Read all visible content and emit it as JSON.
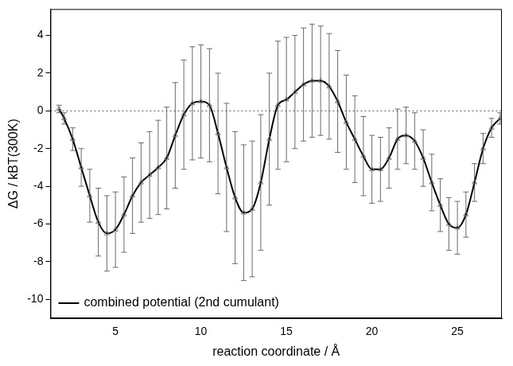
{
  "chart_data": {
    "type": "line",
    "x_label": "reaction coordinate / Å",
    "y_label": "ΔG / kBT(300K)",
    "x": [
      1.7,
      2.0,
      2.5,
      3.0,
      3.5,
      4.0,
      4.5,
      5.0,
      5.5,
      6.0,
      6.5,
      7.0,
      7.5,
      8.0,
      8.5,
      9.0,
      9.5,
      10.0,
      10.5,
      11.0,
      11.5,
      12.0,
      12.5,
      13.0,
      13.5,
      14.0,
      14.5,
      15.0,
      15.5,
      16.0,
      16.5,
      17.0,
      17.5,
      18.0,
      18.5,
      19.0,
      19.5,
      20.0,
      20.5,
      21.0,
      21.5,
      22.0,
      22.5,
      23.0,
      23.5,
      24.0,
      24.5,
      25.0,
      25.5,
      26.0,
      26.5,
      27.0,
      27.5
    ],
    "series": [
      {
        "name": "combined potential (2nd cumulant)",
        "color": "#000000",
        "marker": "triangle",
        "values": [
          0.1,
          -0.4,
          -1.5,
          -3.0,
          -4.5,
          -5.9,
          -6.5,
          -6.3,
          -5.5,
          -4.5,
          -3.8,
          -3.4,
          -3.0,
          -2.5,
          -1.3,
          -0.2,
          0.4,
          0.5,
          0.3,
          -1.2,
          -3.0,
          -4.6,
          -5.4,
          -5.2,
          -3.8,
          -1.5,
          0.3,
          0.6,
          1.0,
          1.4,
          1.6,
          1.6,
          1.3,
          0.5,
          -0.6,
          -1.5,
          -2.4,
          -3.1,
          -3.1,
          -2.5,
          -1.5,
          -1.3,
          -1.6,
          -2.5,
          -3.8,
          -5.0,
          -6.0,
          -6.2,
          -5.5,
          -3.8,
          -2.0,
          -0.9,
          -0.4
        ],
        "errors": [
          0.2,
          0.3,
          0.6,
          1.0,
          1.4,
          1.8,
          2.0,
          2.0,
          2.0,
          2.0,
          2.1,
          2.3,
          2.5,
          2.7,
          2.8,
          2.9,
          3.0,
          3.0,
          3.0,
          3.2,
          3.4,
          3.5,
          3.6,
          3.6,
          3.6,
          3.5,
          3.4,
          3.3,
          3.0,
          3.0,
          3.0,
          2.9,
          2.8,
          2.7,
          2.5,
          2.3,
          2.1,
          1.8,
          1.7,
          1.6,
          1.6,
          1.5,
          1.5,
          1.5,
          1.5,
          1.4,
          1.4,
          1.4,
          1.2,
          1.0,
          0.8,
          0.5,
          0.3
        ]
      }
    ],
    "xlim": [
      1.2,
      27.6
    ],
    "ylim": [
      -11,
      5.4
    ],
    "xticks": [
      5,
      10,
      15,
      20,
      25
    ],
    "yticks": [
      -10,
      -8,
      -6,
      -4,
      -2,
      0,
      2,
      4
    ],
    "hline": 0,
    "legend": "lower left",
    "grid": false
  }
}
